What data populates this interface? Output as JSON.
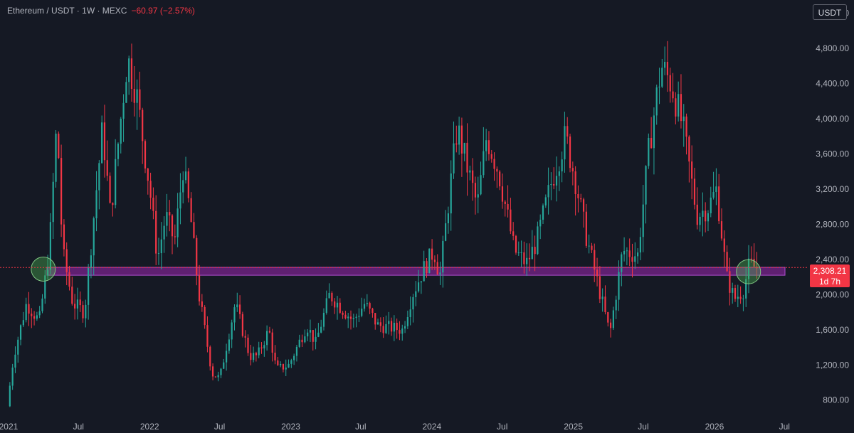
{
  "header": {
    "title": "Ethereum / USDT · 1W · MEXC",
    "change": "−60.97 (−2.57%)"
  },
  "currency_button": "USDT",
  "price_label": {
    "price": "2,308.21",
    "countdown": "1d 7h"
  },
  "colors": {
    "background": "#151924",
    "up": "#26a69a",
    "down": "#f23645",
    "band": "#9c27b0",
    "circle": "#4caf50"
  },
  "chart_data": {
    "type": "candlestick",
    "title": "Ethereum / USDT · 1W · MEXC",
    "y_ticks": [
      "800.00",
      "1,200.00",
      "1,600.00",
      "2,000.00",
      "2,400.00",
      "2,800.00",
      "3,200.00",
      "3,600.00",
      "4,000.00",
      "4,400.00",
      "4,800.00",
      "5,200.00"
    ],
    "x_ticks": [
      "2021",
      "Jul",
      "2022",
      "Jul",
      "2023",
      "Jul",
      "2024",
      "Jul",
      "2025",
      "Jul",
      "2026",
      "Jul"
    ],
    "ylim": [
      620,
      5350
    ],
    "xlim": [
      "2020-12-10",
      "2026-08-10"
    ],
    "grid": false,
    "support_zone": [
      2220,
      2310
    ],
    "last_price": 2308.21,
    "highlight_circles": [
      {
        "date": "2021-04-01",
        "price": 2290
      },
      {
        "date": "2026-03-30",
        "price": 2260
      }
    ],
    "path": [
      [
        "2021-01-01",
        730
      ],
      [
        "2021-01-18",
        1300
      ],
      [
        "2021-02-20",
        1900
      ],
      [
        "2021-03-25",
        1700
      ],
      [
        "2021-04-20",
        2500
      ],
      [
        "2021-05-10",
        4000
      ],
      [
        "2021-05-24",
        2500
      ],
      [
        "2021-06-20",
        1900
      ],
      [
        "2021-07-20",
        1800
      ],
      [
        "2021-08-20",
        3200
      ],
      [
        "2021-09-05",
        3900
      ],
      [
        "2021-09-25",
        2900
      ],
      [
        "2021-11-08",
        4700
      ],
      [
        "2021-12-01",
        4300
      ],
      [
        "2022-01-05",
        3200
      ],
      [
        "2022-01-25",
        2400
      ],
      [
        "2022-02-15",
        2900
      ],
      [
        "2022-03-10",
        2600
      ],
      [
        "2022-04-01",
        3450
      ],
      [
        "2022-04-20",
        2900
      ],
      [
        "2022-05-12",
        2000
      ],
      [
        "2022-06-15",
        1100
      ],
      [
        "2022-07-05",
        1050
      ],
      [
        "2022-08-14",
        1900
      ],
      [
        "2022-09-20",
        1300
      ],
      [
        "2022-10-10",
        1300
      ],
      [
        "2022-11-09",
        1600
      ],
      [
        "2022-11-28",
        1150
      ],
      [
        "2022-12-31",
        1200
      ],
      [
        "2023-02-15",
        1650
      ],
      [
        "2023-03-10",
        1450
      ],
      [
        "2023-04-15",
        2000
      ],
      [
        "2023-06-15",
        1700
      ],
      [
        "2023-07-15",
        1900
      ],
      [
        "2023-08-17",
        1650
      ],
      [
        "2023-10-20",
        1600
      ],
      [
        "2023-11-15",
        2000
      ],
      [
        "2023-12-15",
        2300
      ],
      [
        "2024-01-10",
        2500
      ],
      [
        "2024-01-25",
        2200
      ],
      [
        "2024-03-10",
        3900
      ],
      [
        "2024-05-01",
        3000
      ],
      [
        "2024-05-25",
        3800
      ],
      [
        "2024-06-25",
        3400
      ],
      [
        "2024-08-05",
        2500
      ],
      [
        "2024-09-05",
        2350
      ],
      [
        "2024-10-01",
        2600
      ],
      [
        "2024-11-10",
        3300
      ],
      [
        "2024-12-15",
        3800
      ],
      [
        "2025-01-10",
        3300
      ],
      [
        "2025-02-05",
        2700
      ],
      [
        "2025-03-10",
        2100
      ],
      [
        "2025-04-09",
        1550
      ],
      [
        "2025-05-12",
        2500
      ],
      [
        "2025-06-20",
        2450
      ],
      [
        "2025-07-20",
        3700
      ],
      [
        "2025-08-20",
        4600
      ],
      [
        "2025-09-15",
        4400
      ],
      [
        "2025-10-15",
        3900
      ],
      [
        "2025-11-20",
        2900
      ],
      [
        "2025-12-20",
        3000
      ],
      [
        "2026-01-10",
        3200
      ],
      [
        "2026-02-05",
        2200
      ],
      [
        "2026-02-25",
        1950
      ],
      [
        "2026-03-20",
        2050
      ],
      [
        "2026-04-05",
        2350
      ],
      [
        "2026-04-20",
        2308
      ]
    ]
  }
}
